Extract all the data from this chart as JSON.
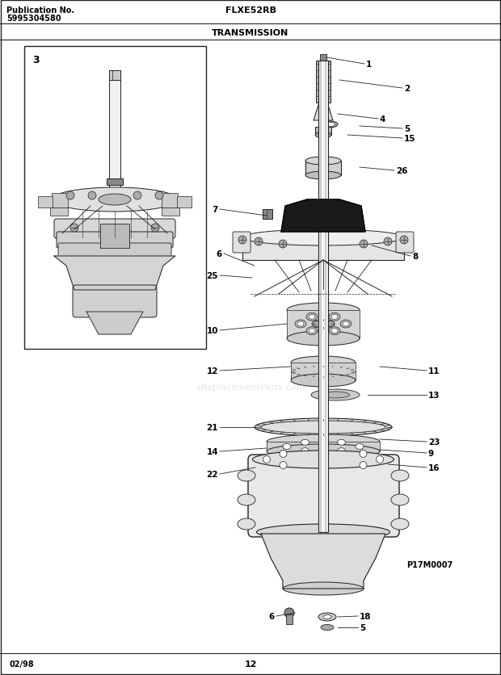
{
  "title_left_line1": "Publication No.",
  "title_left_line2": "5995304580",
  "title_center": "FLXE52RB",
  "title_section": "TRANSMISSION",
  "footer_left": "02/98",
  "footer_center": "12",
  "watermark": "eReplacementParts.com",
  "diagram_id": "P17M0007",
  "bg_color": "#ffffff",
  "text_color": "#000000",
  "line_color": "#222222",
  "gray_light": "#cccccc",
  "gray_mid": "#999999",
  "gray_dark": "#555555"
}
